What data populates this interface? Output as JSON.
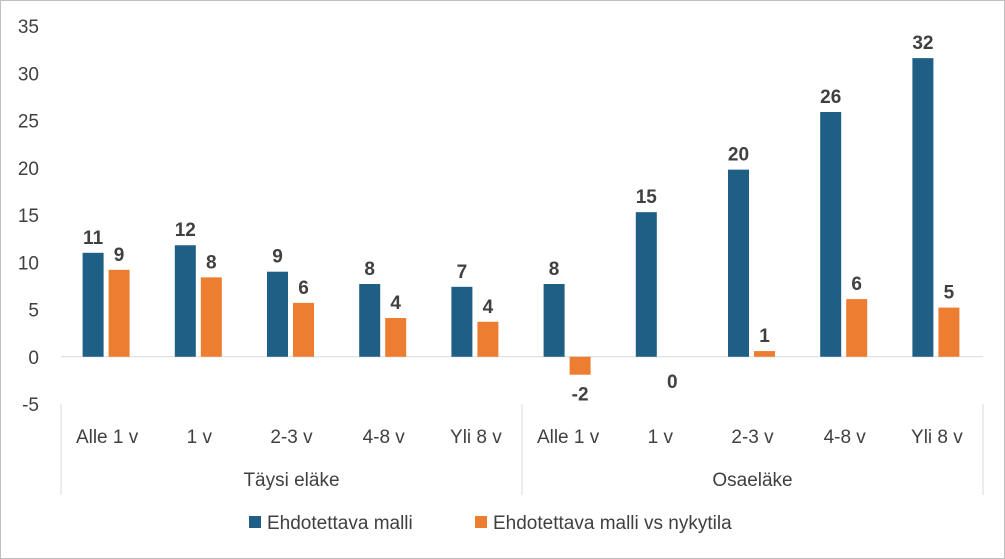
{
  "chart_data": {
    "type": "bar",
    "groups": [
      {
        "label": "Täysi eläke",
        "categories": [
          "Alle 1 v",
          "1 v",
          "2-3 v",
          "4-8 v",
          "Yli 8 v"
        ]
      },
      {
        "label": "Osaeläke",
        "categories": [
          "Alle 1 v",
          "1 v",
          "2-3 v",
          "4-8 v",
          "Yli 8 v"
        ]
      }
    ],
    "series": [
      {
        "name": "Ehdotettava malli",
        "color": "#1f5f86",
        "values": [
          11.0,
          11.8,
          9.0,
          7.7,
          7.4,
          7.7,
          15.3,
          19.8,
          25.9,
          31.6
        ],
        "labels": [
          "11",
          "12",
          "9",
          "8",
          "7",
          "8",
          "15",
          "20",
          "26",
          "32"
        ]
      },
      {
        "name": "Ehdotettava malli vs nykytila",
        "color": "#ed7d31",
        "values": [
          9.2,
          8.4,
          5.7,
          4.1,
          3.7,
          -1.9,
          0.0,
          0.6,
          6.1,
          5.2
        ],
        "labels": [
          "9",
          "8",
          "6",
          "4",
          "4",
          "-2",
          "0",
          "1",
          "6",
          "5"
        ]
      }
    ],
    "yticks": [
      "35",
      "30",
      "25",
      "20",
      "15",
      "10",
      "5",
      "0",
      "-5"
    ],
    "ylim": [
      -5,
      35
    ],
    "grid": false,
    "legend": "bottom"
  }
}
